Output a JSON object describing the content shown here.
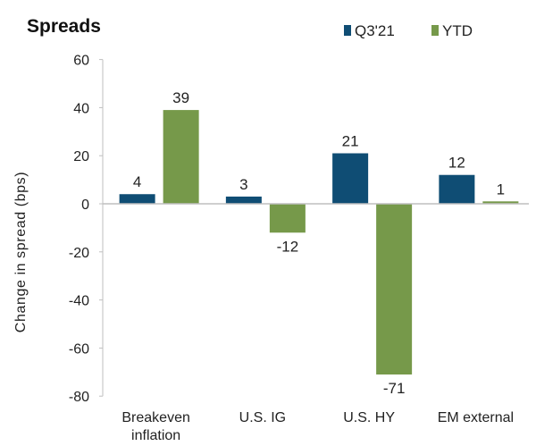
{
  "chart_data": {
    "type": "bar",
    "title": "Spreads",
    "ylabel": "Change in spread (bps)",
    "xlabel": "",
    "ylim": [
      -80,
      60
    ],
    "yticks": [
      60,
      40,
      20,
      0,
      -20,
      -40,
      -60,
      -80
    ],
    "grid": false,
    "legend_position": "top-right",
    "categories": [
      [
        "Breakeven",
        "inflation"
      ],
      [
        "U.S. IG"
      ],
      [
        "U.S. HY"
      ],
      [
        "EM external"
      ]
    ],
    "series": [
      {
        "name": "Q3'21",
        "color": "#0f4d74",
        "values": [
          4,
          3,
          21,
          12
        ]
      },
      {
        "name": "YTD",
        "color": "#76994a",
        "values": [
          39,
          -12,
          -71,
          1
        ]
      }
    ]
  }
}
